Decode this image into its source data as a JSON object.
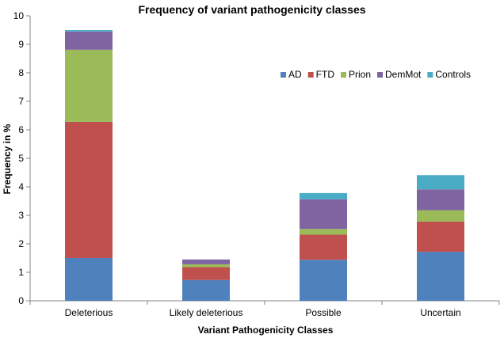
{
  "chart_data": {
    "type": "bar",
    "stacked": true,
    "title": "Frequency  of variant pathogenicity classes",
    "xlabel": "Variant Pathogenicity Classes",
    "ylabel": "Frequency in %",
    "ylim": [
      0,
      10
    ],
    "yticks": [
      0,
      1,
      2,
      3,
      4,
      5,
      6,
      7,
      8,
      9,
      10
    ],
    "grid": false,
    "legend_position": "top-right",
    "categories": [
      "Deleterious",
      "Likely deleterious",
      "Possible",
      "Uncertain"
    ],
    "series": [
      {
        "name": "AD",
        "color": "#4F81BD",
        "values": [
          1.5,
          0.73,
          1.44,
          1.72
        ]
      },
      {
        "name": "FTD",
        "color": "#C0504D",
        "values": [
          4.78,
          0.45,
          0.88,
          1.06
        ]
      },
      {
        "name": "Prion",
        "color": "#9BBB59",
        "values": [
          2.53,
          0.1,
          0.2,
          0.4
        ]
      },
      {
        "name": "DemMot",
        "color": "#8064A2",
        "values": [
          0.64,
          0.17,
          1.04,
          0.73
        ]
      },
      {
        "name": "Controls",
        "color": "#4BACC6",
        "values": [
          0.05,
          0.0,
          0.22,
          0.5
        ]
      }
    ]
  }
}
